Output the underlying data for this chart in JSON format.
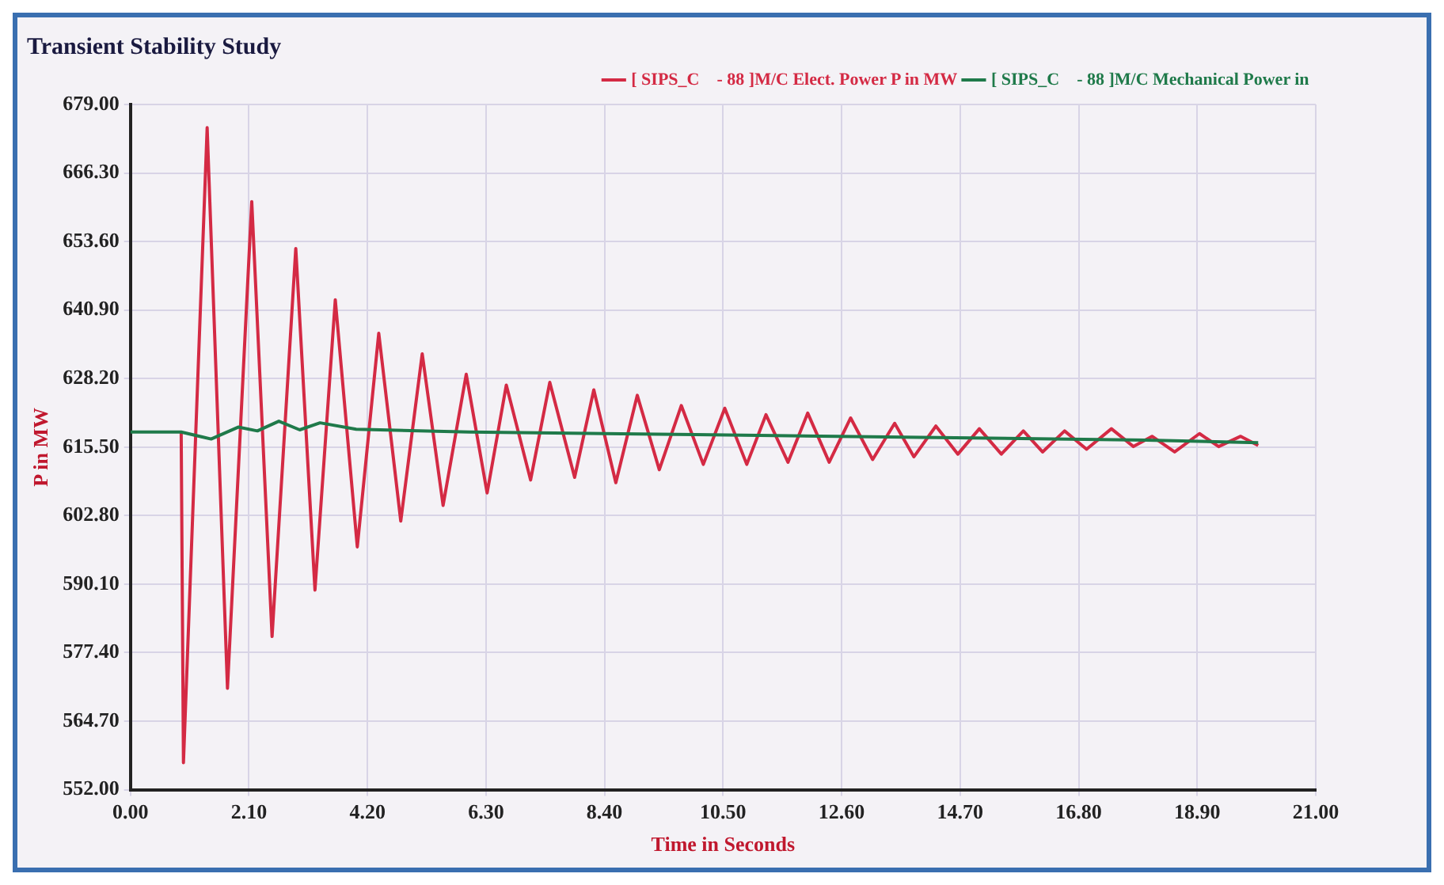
{
  "chart_data": {
    "type": "line",
    "title": "Transient Stability Study",
    "xlabel": "Time in Seconds",
    "ylabel": "P in MW",
    "xlim": [
      0,
      21
    ],
    "xticks": [
      {
        "value": 0,
        "label": "0.00"
      },
      {
        "value": 2.1,
        "label": "2.10"
      },
      {
        "value": 4.2,
        "label": "4.20"
      },
      {
        "value": 6.3,
        "label": "6.30"
      },
      {
        "value": 8.4,
        "label": "8.40"
      },
      {
        "value": 10.5,
        "label": "10.50"
      },
      {
        "value": 12.6,
        "label": "12.60"
      },
      {
        "value": 14.7,
        "label": "14.70"
      },
      {
        "value": 16.8,
        "label": "16.80"
      },
      {
        "value": 18.9,
        "label": "18.90"
      },
      {
        "value": 21,
        "label": "21.00"
      }
    ],
    "ylim": [
      552,
      679
    ],
    "yticks": [
      {
        "value": 552,
        "label": "552.00"
      },
      {
        "value": 564.7,
        "label": "564.70"
      },
      {
        "value": 577.4,
        "label": "577.40"
      },
      {
        "value": 590.1,
        "label": "590.10"
      },
      {
        "value": 602.8,
        "label": "602.80"
      },
      {
        "value": 615.5,
        "label": "615.50"
      },
      {
        "value": 628.2,
        "label": "628.20"
      },
      {
        "value": 640.9,
        "label": "640.90"
      },
      {
        "value": 653.6,
        "label": "653.60"
      },
      {
        "value": 666.3,
        "label": "666.30"
      },
      {
        "value": 679,
        "label": "679.00"
      }
    ],
    "grid": true,
    "legend": "top right",
    "marker": "none",
    "line_style": "solid",
    "series": [
      {
        "name": "[ SIPS_C    - 88 ]M/C Elect. Power P in MW",
        "color": "#d42a44",
        "x": [
          0.9,
          0.94,
          1.36,
          1.72,
          2.15,
          2.51,
          2.93,
          3.27,
          3.63,
          4.02,
          4.4,
          4.79,
          5.17,
          5.54,
          5.95,
          6.32,
          6.66,
          7.09,
          7.43,
          7.87,
          8.21,
          8.6,
          8.98,
          9.37,
          9.76,
          10.15,
          10.53,
          10.92,
          11.26,
          11.65,
          12.0,
          12.38,
          12.76,
          13.15,
          13.54,
          13.88,
          14.27,
          14.66,
          15.04,
          15.43,
          15.82,
          16.16,
          16.55,
          16.94,
          17.38,
          17.77,
          18.1,
          18.5,
          18.94,
          19.28,
          19.67,
          19.98
        ],
        "values": [
          618.3,
          557,
          674.7,
          570.8,
          661,
          580.4,
          652.3,
          589,
          642.8,
          597,
          636.6,
          601.8,
          632.8,
          604.7,
          629,
          607,
          627,
          609.4,
          627.5,
          609.9,
          626.1,
          608.9,
          625.1,
          611.3,
          623.2,
          612.3,
          622.7,
          612.3,
          621.5,
          612.7,
          621.8,
          612.7,
          620.9,
          613.2,
          619.9,
          613.7,
          619.4,
          614.2,
          618.9,
          614.2,
          618.5,
          614.6,
          618.5,
          615.1,
          618.9,
          615.6,
          617.5,
          614.6,
          618,
          615.6,
          617.5,
          615.8
        ]
      },
      {
        "name": "[ SIPS_C    - 88 ]M/C Mechanical Power in",
        "color": "#1f7a4a",
        "x": [
          0,
          0.9,
          1.43,
          1.91,
          2.25,
          2.63,
          3.0,
          3.36,
          4.0,
          6.0,
          10.0,
          14.0,
          18.0,
          19.98
        ],
        "values": [
          618.3,
          618.3,
          617,
          619.2,
          618.5,
          620.3,
          618.7,
          620,
          618.8,
          618.3,
          617.8,
          617.3,
          616.8,
          616.3
        ]
      }
    ]
  }
}
